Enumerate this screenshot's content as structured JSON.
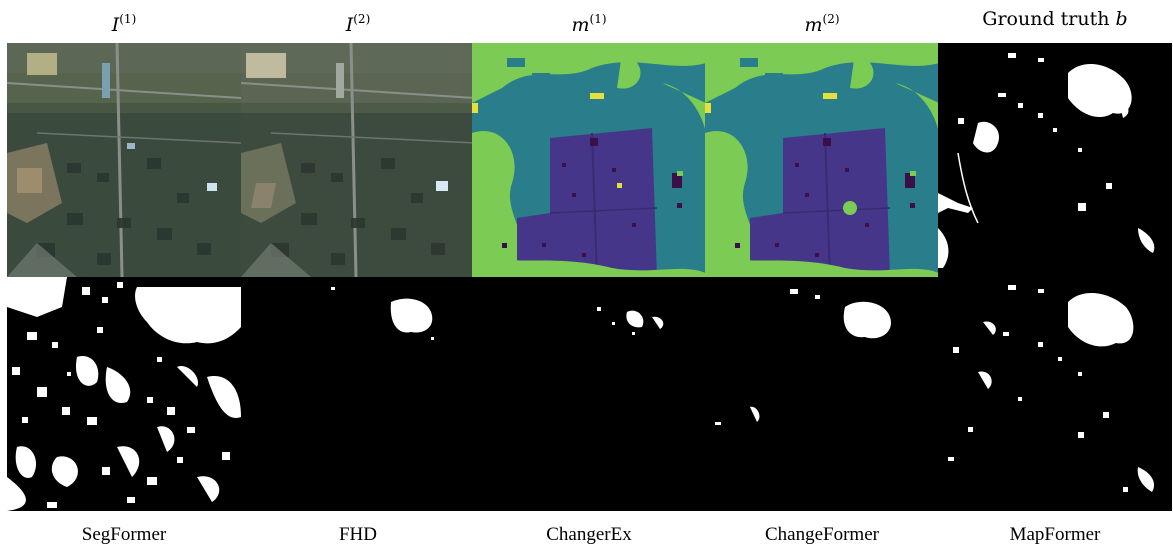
{
  "figure": {
    "top_headers": [
      {
        "base": "I",
        "sup": "(1)"
      },
      {
        "base": "I",
        "sup": "(2)"
      },
      {
        "base": "m",
        "sup": "(1)"
      },
      {
        "base": "m",
        "sup": "(2)"
      },
      {
        "text": "Ground truth",
        "var": "b"
      }
    ],
    "bottom_labels": [
      "SegFormer",
      "FHD",
      "ChangerEx",
      "ChangeFormer",
      "MapFormer"
    ],
    "colors": {
      "satellite_base": "#3a4a3c",
      "map_teal": "#2a7d8a",
      "map_green": "#7ccb55",
      "map_purple": "#46368a",
      "map_yellow": "#e8e03a",
      "map_dark": "#3b0f4a",
      "mask_white": "#ffffff",
      "mask_black": "#000000"
    }
  }
}
